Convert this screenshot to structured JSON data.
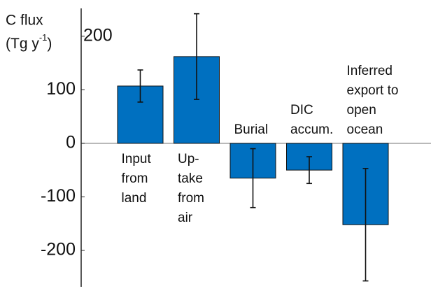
{
  "chart_data": {
    "type": "bar",
    "y_label": [
      "C flux",
      "(Tg y",
      "-1",
      ")"
    ],
    "categories": [
      [
        "Input",
        "from",
        "land"
      ],
      [
        "Up-",
        "take",
        "from",
        "air"
      ],
      [
        "Burial"
      ],
      [
        "DIC",
        "accum."
      ],
      [
        "Inferred",
        "export to",
        "open",
        "ocean"
      ]
    ],
    "values": [
      107,
      162,
      -65,
      -50,
      -152
    ],
    "errors": [
      30,
      80,
      55,
      25,
      105
    ],
    "color": "#0070c0",
    "ylim": [
      -268,
      252
    ],
    "yticks": [
      -200,
      -100,
      0,
      100,
      200
    ]
  }
}
